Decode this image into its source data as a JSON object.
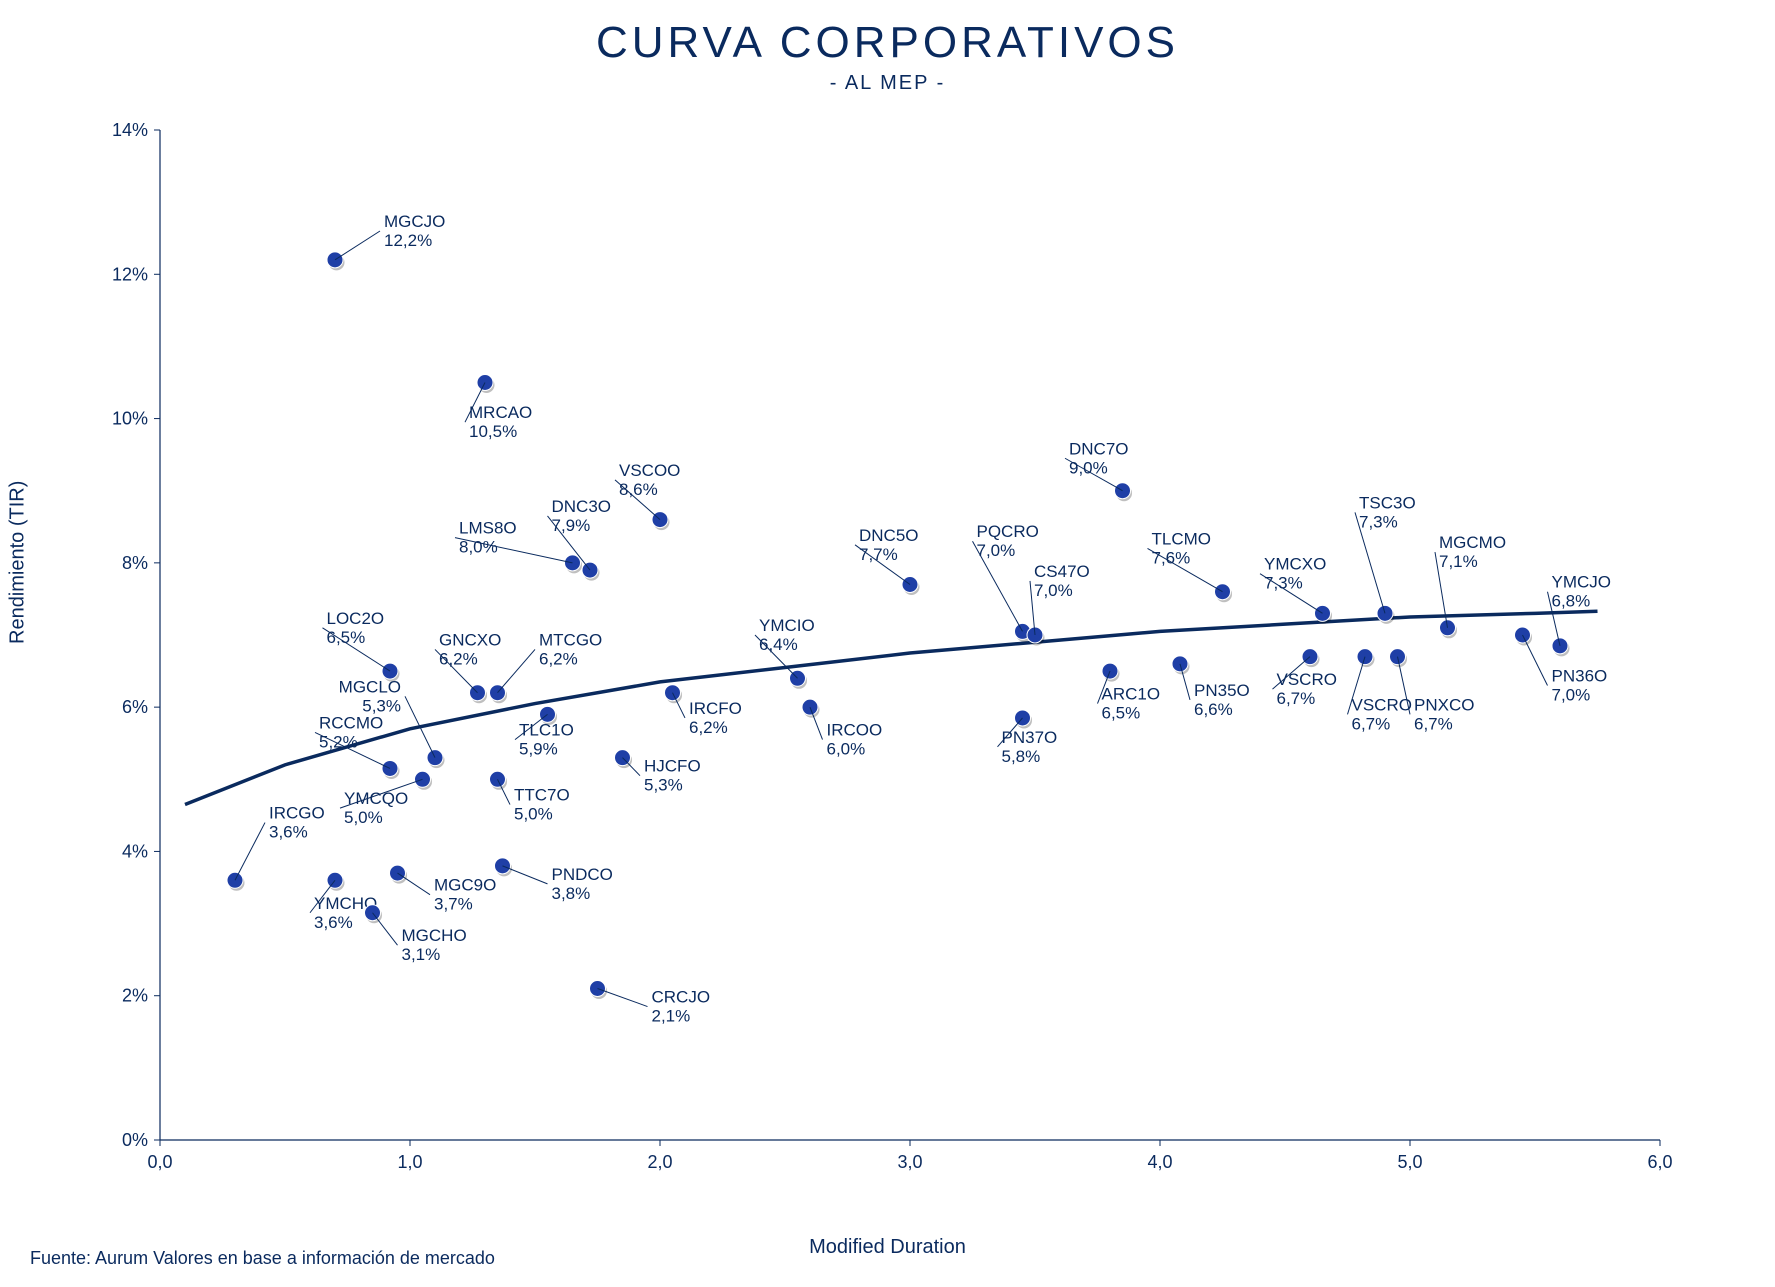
{
  "title": "CURVA CORPORATIVOS",
  "subtitle": "- AL MEP -",
  "ylabel": "Rendimiento (TIR)",
  "xlabel": "Modified Duration",
  "source": "Fuente: Aurum Valores en base a información de mercado",
  "chart": {
    "type": "scatter",
    "xlim": [
      0.0,
      6.0
    ],
    "ylim": [
      0.0,
      14.0
    ],
    "xtick_step": 1.0,
    "ytick_step": 2.0,
    "x_tick_format": "comma_decimal_1",
    "y_tick_format": "percent_int",
    "background_color": "#ffffff",
    "axis_color": "#0a2a5e",
    "tick_color": "#0a2a5e",
    "curve_color": "#0a2a5e",
    "curve_width": 3.5,
    "marker_color": "#1f3fa6",
    "marker_radius": 8,
    "label_fontsize": 17,
    "axis_fontsize": 18,
    "title_fontsize": 44,
    "subtitle_fontsize": 20,
    "points": [
      {
        "ticker": "IRCGO",
        "x": 0.3,
        "y": 3.6,
        "lx": 0.42,
        "ly": 4.4,
        "anchor": "start"
      },
      {
        "ticker": "MGCJO",
        "x": 0.7,
        "y": 12.2,
        "lx": 0.88,
        "ly": 12.6,
        "anchor": "start"
      },
      {
        "ticker": "YMCHO",
        "x": 0.7,
        "y": 3.6,
        "lx": 0.6,
        "ly": 3.15,
        "anchor": "start"
      },
      {
        "ticker": "MGCHO",
        "x": 0.85,
        "y": 3.15,
        "lx": 0.95,
        "ly": 2.7,
        "anchor": "start"
      },
      {
        "ticker": "RCCMO",
        "x": 0.92,
        "y": 5.15,
        "lx": 0.62,
        "ly": 5.65,
        "anchor": "start"
      },
      {
        "ticker": "LOC2O",
        "x": 0.92,
        "y": 6.5,
        "lx": 0.65,
        "ly": 7.1,
        "anchor": "start"
      },
      {
        "ticker": "MGC9O",
        "x": 0.95,
        "y": 3.7,
        "lx": 1.08,
        "ly": 3.4,
        "anchor": "start"
      },
      {
        "ticker": "YMCQO",
        "x": 1.05,
        "y": 5.0,
        "lx": 0.72,
        "ly": 4.6,
        "anchor": "start"
      },
      {
        "ticker": "MGCLO",
        "x": 1.1,
        "y": 5.3,
        "lx": 0.98,
        "ly": 6.15,
        "anchor": "end"
      },
      {
        "ticker": "GNCXO",
        "x": 1.27,
        "y": 6.2,
        "lx": 1.1,
        "ly": 6.8,
        "anchor": "start"
      },
      {
        "ticker": "MRCAO",
        "x": 1.3,
        "y": 10.5,
        "lx": 1.22,
        "ly": 9.95,
        "anchor": "start"
      },
      {
        "ticker": "MTCGO",
        "x": 1.35,
        "y": 6.2,
        "lx": 1.5,
        "ly": 6.8,
        "anchor": "start"
      },
      {
        "ticker": "TTC7O",
        "x": 1.35,
        "y": 5.0,
        "lx": 1.4,
        "ly": 4.65,
        "anchor": "start"
      },
      {
        "ticker": "PNDCO",
        "x": 1.37,
        "y": 3.8,
        "lx": 1.55,
        "ly": 3.55,
        "anchor": "start"
      },
      {
        "ticker": "LMS8O",
        "x": 1.65,
        "y": 8.0,
        "lx": 1.18,
        "ly": 8.35,
        "anchor": "start"
      },
      {
        "ticker": "TLC1O",
        "x": 1.55,
        "y": 5.9,
        "lx": 1.42,
        "ly": 5.55,
        "anchor": "start"
      },
      {
        "ticker": "DNC3O",
        "x": 1.72,
        "y": 7.9,
        "lx": 1.55,
        "ly": 8.65,
        "anchor": "start"
      },
      {
        "ticker": "CRCJO",
        "x": 1.75,
        "y": 2.1,
        "lx": 1.95,
        "ly": 1.85,
        "anchor": "start"
      },
      {
        "ticker": "HJCFO",
        "x": 1.85,
        "y": 5.3,
        "lx": 1.92,
        "ly": 5.05,
        "anchor": "start"
      },
      {
        "ticker": "VSCOO",
        "x": 2.0,
        "y": 8.6,
        "lx": 1.82,
        "ly": 9.15,
        "anchor": "start"
      },
      {
        "ticker": "IRCFO",
        "x": 2.05,
        "y": 6.2,
        "lx": 2.1,
        "ly": 5.85,
        "anchor": "start"
      },
      {
        "ticker": "YMCIO",
        "x": 2.55,
        "y": 6.4,
        "lx": 2.38,
        "ly": 7.0,
        "anchor": "start"
      },
      {
        "ticker": "IRCOO",
        "x": 2.6,
        "y": 6.0,
        "lx": 2.65,
        "ly": 5.55,
        "anchor": "start"
      },
      {
        "ticker": "DNC5O",
        "x": 3.0,
        "y": 7.7,
        "lx": 2.78,
        "ly": 8.25,
        "anchor": "start"
      },
      {
        "ticker": "PQCRO",
        "x": 3.45,
        "y": 7.05,
        "lx": 3.25,
        "ly": 8.3,
        "anchor": "start"
      },
      {
        "ticker": "CS47O",
        "x": 3.5,
        "y": 7.0,
        "lx": 3.48,
        "ly": 7.75,
        "anchor": "start"
      },
      {
        "ticker": "PN37O",
        "x": 3.45,
        "y": 5.85,
        "lx": 3.35,
        "ly": 5.45,
        "anchor": "start"
      },
      {
        "ticker": "DNC7O",
        "x": 3.85,
        "y": 9.0,
        "lx": 3.62,
        "ly": 9.45,
        "anchor": "start"
      },
      {
        "ticker": "ARC1O",
        "x": 3.8,
        "y": 6.5,
        "lx": 3.75,
        "ly": 6.05,
        "anchor": "start"
      },
      {
        "ticker": "PN35O",
        "x": 4.08,
        "y": 6.6,
        "lx": 4.12,
        "ly": 6.1,
        "anchor": "start"
      },
      {
        "ticker": "TLCMO",
        "x": 4.25,
        "y": 7.6,
        "lx": 3.95,
        "ly": 8.2,
        "anchor": "start"
      },
      {
        "ticker": "VSCRO",
        "x": 4.6,
        "y": 6.7,
        "lx": 4.45,
        "ly": 6.25,
        "anchor": "start"
      },
      {
        "ticker": "YMCXO",
        "x": 4.65,
        "y": 7.3,
        "lx": 4.4,
        "ly": 7.85,
        "anchor": "start"
      },
      {
        "ticker": "VSCRO",
        "x": 4.82,
        "y": 6.7,
        "lx": 4.75,
        "ly": 5.9,
        "anchor": "start"
      },
      {
        "ticker": "TSC3O",
        "x": 4.9,
        "y": 7.3,
        "lx": 4.78,
        "ly": 8.7,
        "anchor": "start"
      },
      {
        "ticker": "PNXCO",
        "x": 4.95,
        "y": 6.7,
        "lx": 5.0,
        "ly": 5.9,
        "anchor": "start"
      },
      {
        "ticker": "MGCMO",
        "x": 5.15,
        "y": 7.1,
        "lx": 5.1,
        "ly": 8.15,
        "anchor": "start"
      },
      {
        "ticker": "PN36O",
        "x": 5.45,
        "y": 7.0,
        "lx": 5.55,
        "ly": 6.3,
        "anchor": "start"
      },
      {
        "ticker": "YMCJO",
        "x": 5.6,
        "y": 6.85,
        "lx": 5.55,
        "ly": 7.6,
        "anchor": "start"
      }
    ],
    "curve_points": [
      {
        "x": 0.1,
        "y": 4.65
      },
      {
        "x": 0.5,
        "y": 5.2
      },
      {
        "x": 1.0,
        "y": 5.7
      },
      {
        "x": 1.5,
        "y": 6.05
      },
      {
        "x": 2.0,
        "y": 6.35
      },
      {
        "x": 2.5,
        "y": 6.55
      },
      {
        "x": 3.0,
        "y": 6.75
      },
      {
        "x": 3.5,
        "y": 6.9
      },
      {
        "x": 4.0,
        "y": 7.05
      },
      {
        "x": 4.5,
        "y": 7.15
      },
      {
        "x": 5.0,
        "y": 7.25
      },
      {
        "x": 5.5,
        "y": 7.3
      },
      {
        "x": 5.75,
        "y": 7.33
      }
    ]
  }
}
